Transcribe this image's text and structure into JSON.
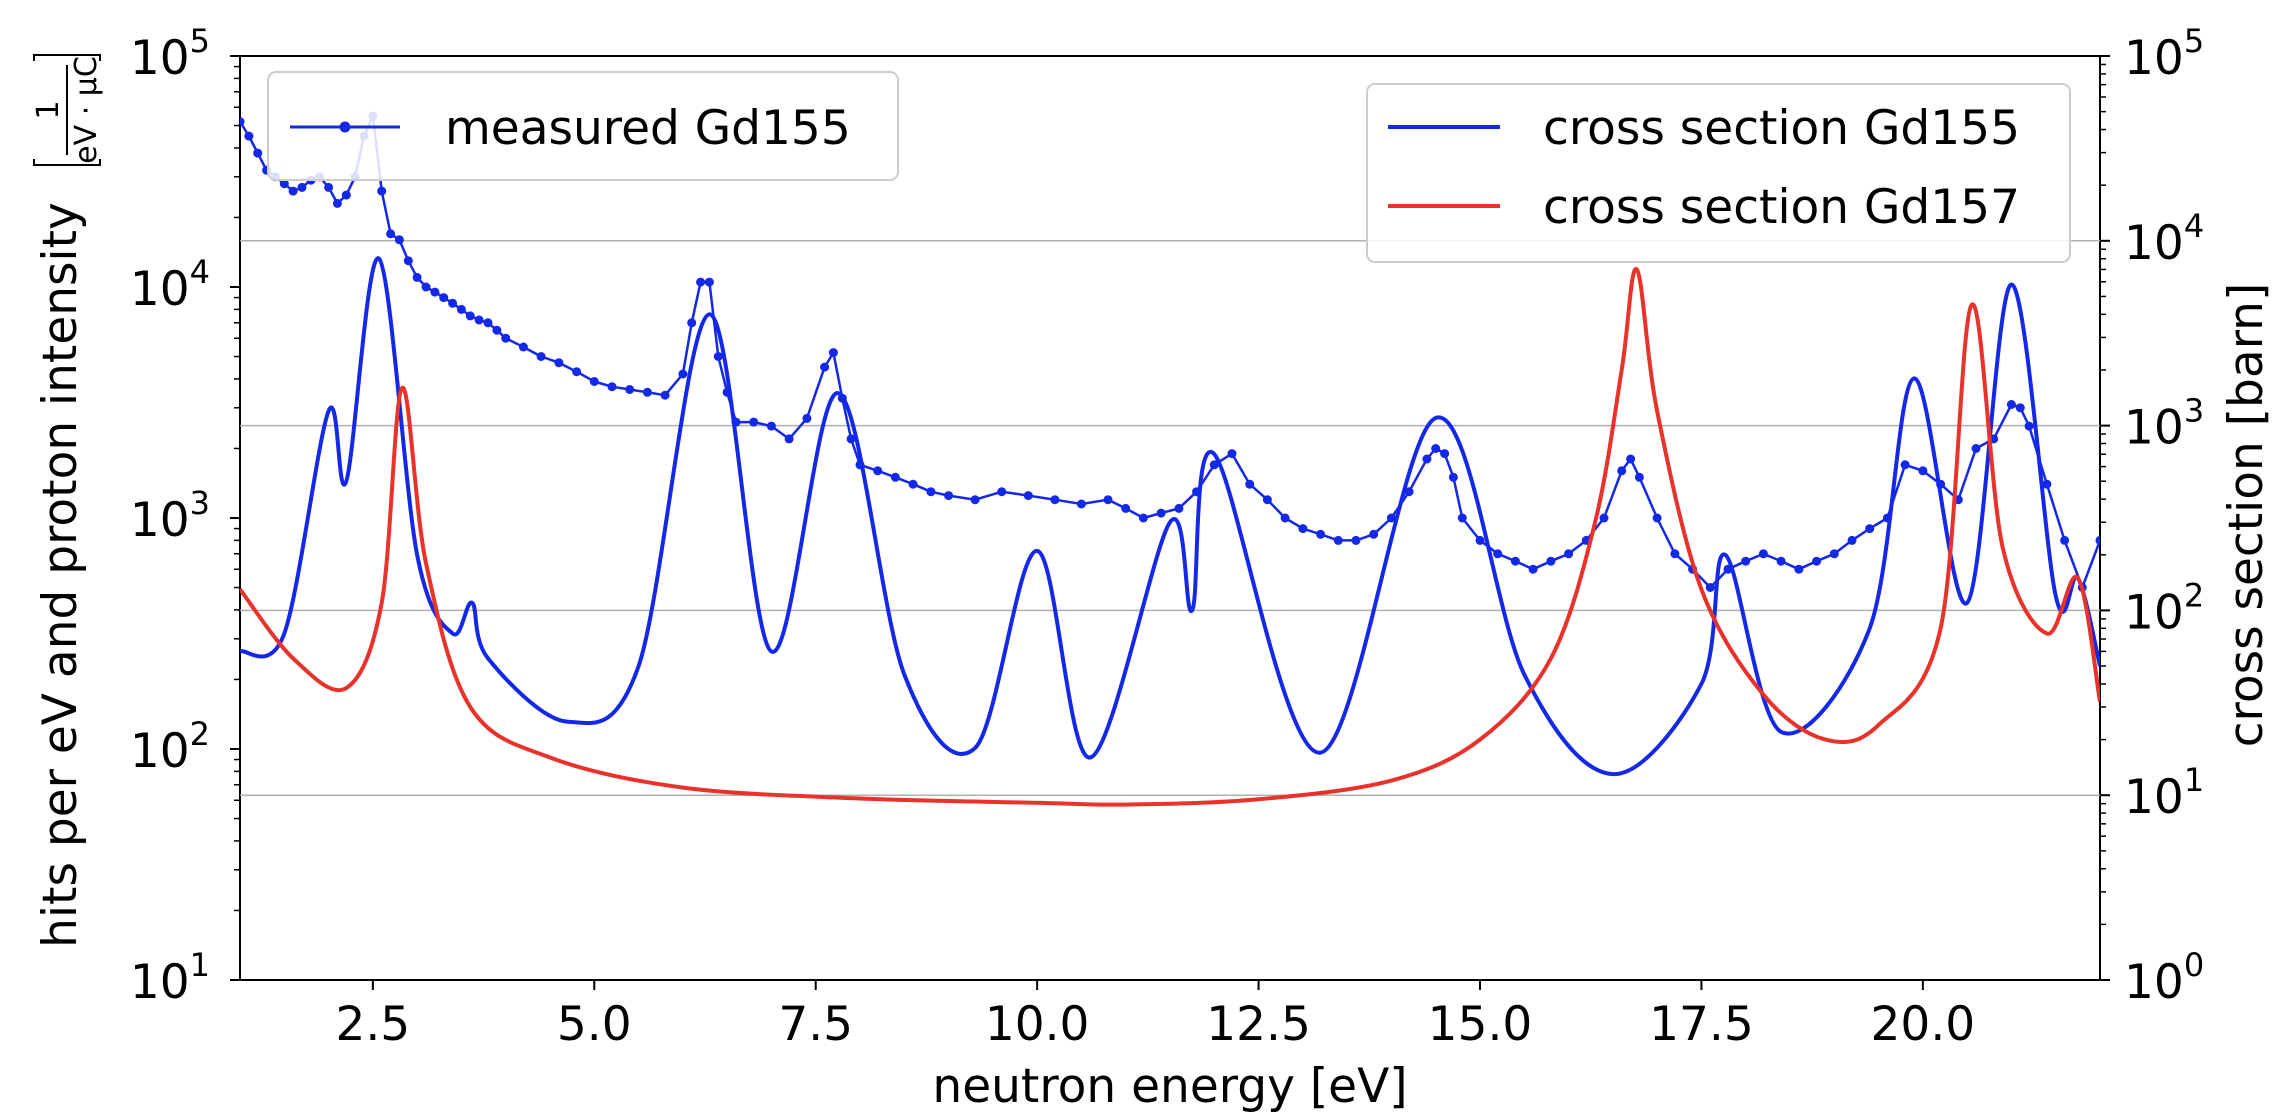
{
  "chart_data": {
    "type": "line",
    "xlabel": "neutron energy [eV]",
    "ylabel": "hits per eV and proton intensity",
    "ylabel_unit": {
      "numerator": "1",
      "denominator": "eV · μC"
    },
    "ylabel_right": "cross section [barn]",
    "xlim": [
      1.0,
      22.0
    ],
    "x_ticks": [
      "2.5",
      "5.0",
      "7.5",
      "10.0",
      "12.5",
      "15.0",
      "17.5",
      "20.0"
    ],
    "left_axis": {
      "scale": "log",
      "ylim": [
        10,
        100000
      ],
      "ticks": [
        {
          "base": "10",
          "exp": "1"
        },
        {
          "base": "10",
          "exp": "2"
        },
        {
          "base": "10",
          "exp": "3"
        },
        {
          "base": "10",
          "exp": "4"
        },
        {
          "base": "10",
          "exp": "5"
        }
      ]
    },
    "right_axis": {
      "scale": "log",
      "ylim": [
        1,
        100000
      ],
      "ticks": [
        {
          "base": "10",
          "exp": "0"
        },
        {
          "base": "10",
          "exp": "1"
        },
        {
          "base": "10",
          "exp": "2"
        },
        {
          "base": "10",
          "exp": "3"
        },
        {
          "base": "10",
          "exp": "4"
        },
        {
          "base": "10",
          "exp": "5"
        }
      ]
    },
    "grid": "horizontal lines at right-axis decades",
    "legend_left": {
      "position": "upper-left",
      "entries": [
        "measured Gd155"
      ]
    },
    "legend_right": {
      "position": "upper-right",
      "entries": [
        "cross section Gd155",
        "cross section Gd157"
      ]
    },
    "series": [
      {
        "name": "measured Gd155",
        "axis": "left",
        "color": "#1428e8",
        "marker": "dot",
        "x": [
          1.0,
          1.1,
          1.2,
          1.3,
          1.4,
          1.5,
          1.6,
          1.7,
          1.8,
          1.9,
          2.0,
          2.1,
          2.2,
          2.3,
          2.4,
          2.5,
          2.6,
          2.7,
          2.8,
          2.9,
          3.0,
          3.1,
          3.2,
          3.3,
          3.4,
          3.5,
          3.6,
          3.7,
          3.8,
          3.9,
          4.0,
          4.2,
          4.4,
          4.6,
          4.8,
          5.0,
          5.2,
          5.4,
          5.6,
          5.8,
          6.0,
          6.1,
          6.2,
          6.3,
          6.4,
          6.5,
          6.6,
          6.8,
          7.0,
          7.2,
          7.4,
          7.6,
          7.7,
          7.8,
          7.9,
          8.0,
          8.2,
          8.4,
          8.6,
          8.8,
          9.0,
          9.3,
          9.6,
          9.9,
          10.2,
          10.5,
          10.8,
          11.0,
          11.2,
          11.4,
          11.6,
          11.8,
          12.0,
          12.2,
          12.4,
          12.6,
          12.8,
          13.0,
          13.2,
          13.4,
          13.6,
          13.8,
          14.0,
          14.2,
          14.4,
          14.5,
          14.6,
          14.7,
          14.8,
          15.0,
          15.2,
          15.4,
          15.6,
          15.8,
          16.0,
          16.2,
          16.4,
          16.6,
          16.7,
          16.8,
          17.0,
          17.2,
          17.4,
          17.6,
          17.8,
          18.0,
          18.2,
          18.4,
          18.6,
          18.8,
          19.0,
          19.2,
          19.4,
          19.6,
          19.8,
          20.0,
          20.2,
          20.4,
          20.6,
          20.8,
          21.0,
          21.1,
          21.2,
          21.4,
          21.6,
          21.8,
          22.0
        ],
        "y": [
          52000,
          45000,
          38000,
          32000,
          30000,
          28000,
          26000,
          27000,
          29000,
          30000,
          27000,
          23000,
          25000,
          30000,
          45000,
          55000,
          26000,
          17000,
          16000,
          13000,
          11000,
          10000,
          9500,
          9000,
          8500,
          8000,
          7500,
          7200,
          7000,
          6500,
          6000,
          5500,
          5000,
          4700,
          4300,
          3900,
          3700,
          3600,
          3500,
          3400,
          4200,
          7000,
          10500,
          10500,
          5000,
          3500,
          2600,
          2600,
          2500,
          2200,
          2700,
          4500,
          5200,
          3300,
          2200,
          1700,
          1600,
          1500,
          1400,
          1300,
          1250,
          1200,
          1300,
          1250,
          1200,
          1150,
          1200,
          1100,
          1000,
          1050,
          1100,
          1300,
          1700,
          1900,
          1400,
          1200,
          1000,
          900,
          850,
          800,
          800,
          850,
          1000,
          1300,
          1800,
          2000,
          1900,
          1500,
          1000,
          800,
          700,
          650,
          600,
          650,
          700,
          800,
          1000,
          1600,
          1800,
          1500,
          1000,
          700,
          600,
          500,
          600,
          650,
          700,
          650,
          600,
          650,
          700,
          800,
          900,
          1000,
          1700,
          1600,
          1400,
          1200,
          2000,
          2200,
          3100,
          3000,
          2500,
          1400,
          800,
          500,
          800
        ]
      },
      {
        "name": "cross section Gd155",
        "axis": "right",
        "color": "#1428e8",
        "peaks": [
          {
            "x": 2.01,
            "y": 1200
          },
          {
            "x": 2.57,
            "y": 8000
          },
          {
            "x": 3.62,
            "y": 110
          },
          {
            "x": 6.3,
            "y": 4000
          },
          {
            "x": 7.75,
            "y": 1500
          },
          {
            "x": 10.0,
            "y": 210
          },
          {
            "x": 11.5,
            "y": 300
          },
          {
            "x": 12.0,
            "y": 700
          },
          {
            "x": 14.5,
            "y": 1100
          },
          {
            "x": 17.77,
            "y": 200
          },
          {
            "x": 19.9,
            "y": 1800
          },
          {
            "x": 21.0,
            "y": 5800
          },
          {
            "x": 21.75,
            "y": 150
          }
        ],
        "x": [
          1.0,
          1.5,
          2.0,
          2.2,
          2.57,
          3.0,
          3.4,
          3.62,
          3.8,
          4.7,
          5.5,
          6.3,
          7.0,
          7.75,
          8.5,
          9.3,
          10.0,
          10.6,
          11.5,
          11.75,
          12.0,
          13.2,
          14.5,
          15.5,
          16.5,
          17.5,
          17.77,
          18.4,
          19.4,
          19.9,
          20.5,
          21.0,
          21.5,
          21.75,
          22.0
        ],
        "y": [
          60,
          75,
          1200,
          500,
          8000,
          200,
          75,
          110,
          55,
          25,
          50,
          4000,
          60,
          1500,
          45,
          18,
          210,
          16,
          300,
          100,
          700,
          17,
          1100,
          45,
          13,
          40,
          200,
          22,
          80,
          1800,
          110,
          5800,
          120,
          150,
          50
        ]
      },
      {
        "name": "cross section Gd157",
        "axis": "right",
        "color": "#e8322a",
        "peaks": [
          {
            "x": 2.83,
            "y": 1600
          },
          {
            "x": 16.77,
            "y": 7000
          },
          {
            "x": 20.55,
            "y": 4500
          },
          {
            "x": 21.75,
            "y": 150
          }
        ],
        "x": [
          1.0,
          1.6,
          2.2,
          2.6,
          2.83,
          3.1,
          3.6,
          4.5,
          6.0,
          8.0,
          10.0,
          11.0,
          12.5,
          14.0,
          15.0,
          15.8,
          16.3,
          16.6,
          16.77,
          17.0,
          17.5,
          18.2,
          18.9,
          19.5,
          20.2,
          20.55,
          20.9,
          21.4,
          21.75,
          22.0
        ],
        "y": [
          130,
          55,
          38,
          110,
          1600,
          180,
          30,
          16,
          11,
          9.6,
          9.1,
          8.9,
          9.5,
          12,
          20,
          55,
          300,
          2000,
          7000,
          1200,
          130,
          35,
          20,
          24,
          80,
          4500,
          220,
          75,
          150,
          32
        ]
      }
    ]
  }
}
